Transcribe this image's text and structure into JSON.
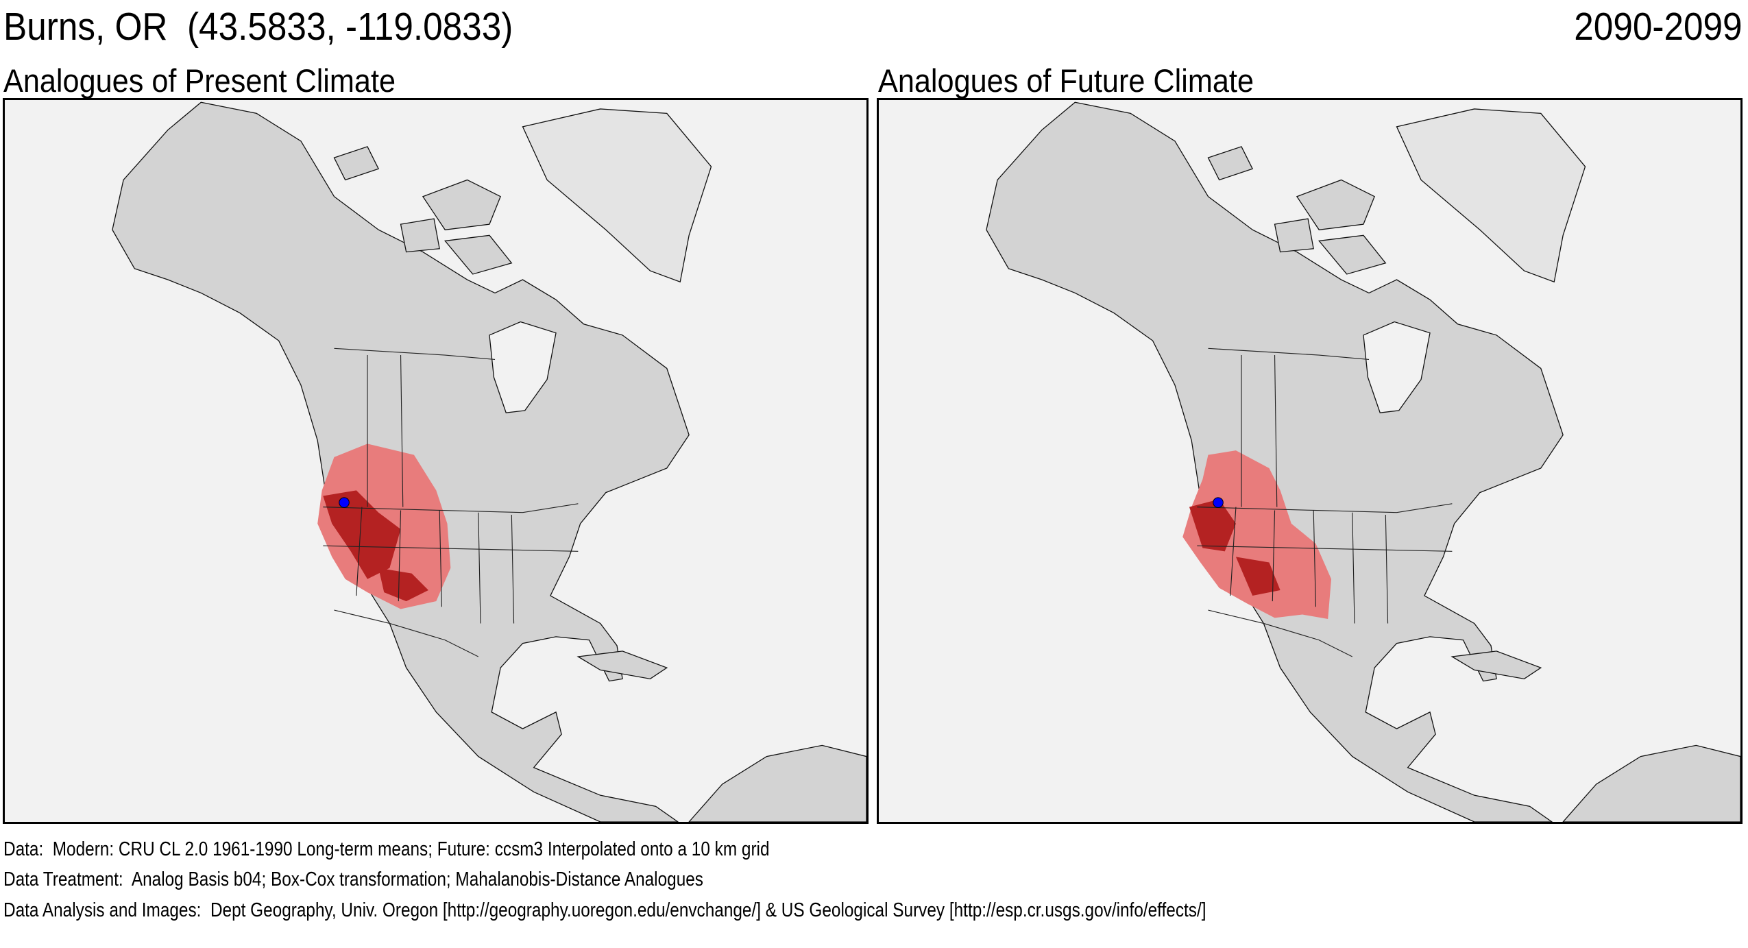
{
  "header": {
    "site_title": "Burns, OR  (43.5833, -119.0833)",
    "period": "2090-2099"
  },
  "site": {
    "name": "Burns, OR",
    "lat": 43.5833,
    "lon": -119.0833
  },
  "panels": [
    {
      "title": "Analogues of Present Climate"
    },
    {
      "title": "Analogues of Future Climate"
    }
  ],
  "footer": {
    "data": "Data:  Modern: CRU CL 2.0 1961-1990 Long-term means; Future: ccsm3 Interpolated onto a 10 km grid",
    "treatment": "Data Treatment:  Analog Basis b04; Box-Cox transformation; Mahalanobis-Distance Analogues",
    "analysis": "Data Analysis and Images:  Dept Geography, Univ. Oregon [http://geography.uoregon.edu/envchange/] & US Geological Survey [http://esp.cr.usgs.gov/info/effects/]"
  },
  "colors": {
    "ocean": "#f2f2f2",
    "land": "#d3d3d3",
    "analogue_light": "#e87c7c",
    "analogue_dark": "#b42222",
    "site_marker": "#0000ff"
  }
}
